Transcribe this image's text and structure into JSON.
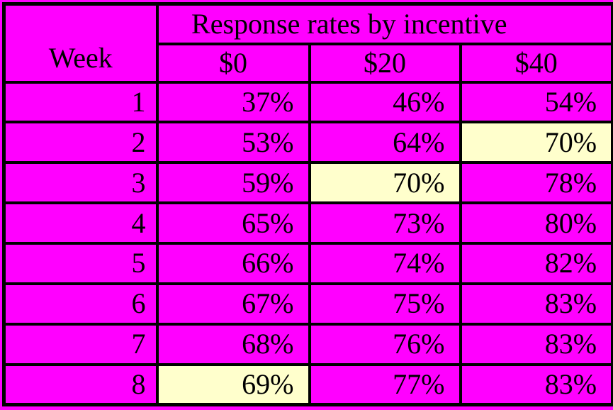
{
  "title": "Response rates by incentive",
  "header": {
    "week": "Week",
    "cols": [
      "$0",
      "$20",
      "$40"
    ]
  },
  "rows": [
    {
      "week": "1",
      "values": [
        "37%",
        "46%",
        "54%"
      ],
      "highlight": null
    },
    {
      "week": "2",
      "values": [
        "53%",
        "64%",
        "70%"
      ],
      "highlight": 2
    },
    {
      "week": "3",
      "values": [
        "59%",
        "70%",
        "78%"
      ],
      "highlight": 1
    },
    {
      "week": "4",
      "values": [
        "65%",
        "73%",
        "80%"
      ],
      "highlight": null
    },
    {
      "week": "5",
      "values": [
        "66%",
        "74%",
        "82%"
      ],
      "highlight": null
    },
    {
      "week": "6",
      "values": [
        "67%",
        "75%",
        "83%"
      ],
      "highlight": null
    },
    {
      "week": "7",
      "values": [
        "68%",
        "76%",
        "83%"
      ],
      "highlight": null
    },
    {
      "week": "8",
      "values": [
        "69%",
        "77%",
        "83%"
      ],
      "highlight": 0
    }
  ],
  "colors": {
    "magenta": "#FF00FF",
    "cream": "#FFFFCC",
    "border": "#000000",
    "text": "#000000"
  },
  "chart_data": {
    "type": "table",
    "title": "Response rates by incentive",
    "xlabel": "Week",
    "categories": [
      1,
      2,
      3,
      4,
      5,
      6,
      7,
      8
    ],
    "series": [
      {
        "name": "$0",
        "values": [
          37,
          53,
          59,
          65,
          66,
          67,
          68,
          69
        ]
      },
      {
        "name": "$20",
        "values": [
          46,
          64,
          70,
          73,
          74,
          75,
          76,
          77
        ]
      },
      {
        "name": "$40",
        "values": [
          54,
          70,
          78,
          80,
          82,
          83,
          83,
          83
        ]
      }
    ],
    "units": "percent",
    "highlighted_cells": [
      {
        "week": 2,
        "series": "$40",
        "value": 70
      },
      {
        "week": 3,
        "series": "$20",
        "value": 70
      },
      {
        "week": 8,
        "series": "$0",
        "value": 69
      }
    ]
  }
}
